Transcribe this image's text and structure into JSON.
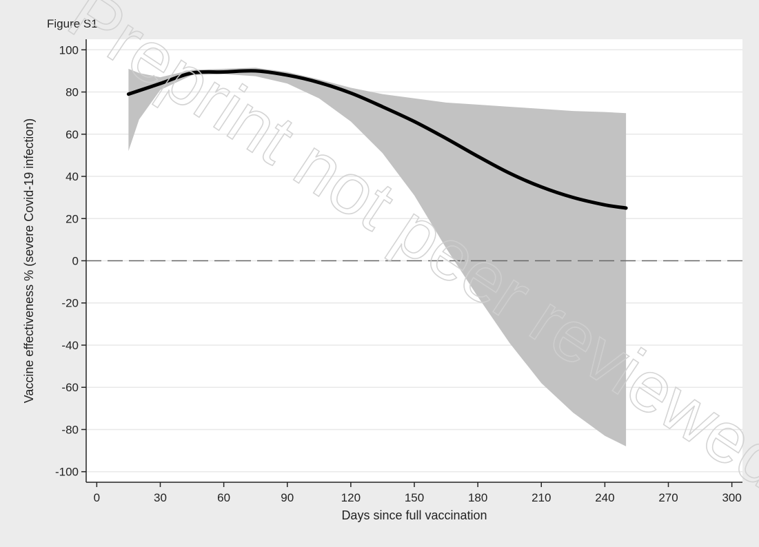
{
  "figure_label": "Figure S1",
  "watermark": "Preprint not peer reviewed",
  "colors": {
    "background": "#ececec",
    "plot_area": "#ffffff",
    "grid": "#e8e8e8",
    "band": "#c2c2c2",
    "line": "#000000",
    "reference_line": "#666666",
    "watermark": "#d0d0d0"
  },
  "chart_data": {
    "type": "line",
    "title": "",
    "xlabel": "Days since full vaccination",
    "ylabel": "Vaccine effectiveness % (severe Covid-19 infection)",
    "xlim": [
      -5,
      305
    ],
    "ylim": [
      -105,
      105
    ],
    "xticks": [
      0,
      30,
      60,
      90,
      120,
      150,
      180,
      210,
      240,
      270,
      300
    ],
    "yticks": [
      100,
      80,
      60,
      40,
      20,
      0,
      -20,
      -40,
      -60,
      -80,
      -100
    ],
    "grid": "horizontal",
    "reference_line": {
      "y": 0,
      "style": "dashed"
    },
    "series": [
      {
        "x": [
          15,
          30,
          45,
          60,
          75,
          90,
          105,
          120,
          135,
          150,
          165,
          180,
          195,
          210,
          225,
          240,
          250
        ],
        "y": [
          79,
          84,
          89,
          89.5,
          90,
          88,
          84.5,
          79.5,
          73,
          66,
          58,
          49.5,
          41.5,
          35,
          30,
          26.5,
          25
        ]
      }
    ],
    "confidence_band": {
      "x": [
        15,
        20,
        30,
        45,
        60,
        75,
        90,
        105,
        120,
        135,
        150,
        165,
        180,
        195,
        210,
        225,
        240,
        250
      ],
      "upper": [
        91,
        89,
        87,
        90.5,
        91,
        91.5,
        89.5,
        86,
        82,
        79,
        77,
        75,
        74,
        73,
        72,
        71,
        70.5,
        70
      ],
      "lower": [
        52,
        67,
        81,
        88,
        88.5,
        87.5,
        84,
        77,
        66,
        51,
        31,
        6,
        -17,
        -39,
        -58,
        -72,
        -83,
        -88
      ]
    }
  }
}
